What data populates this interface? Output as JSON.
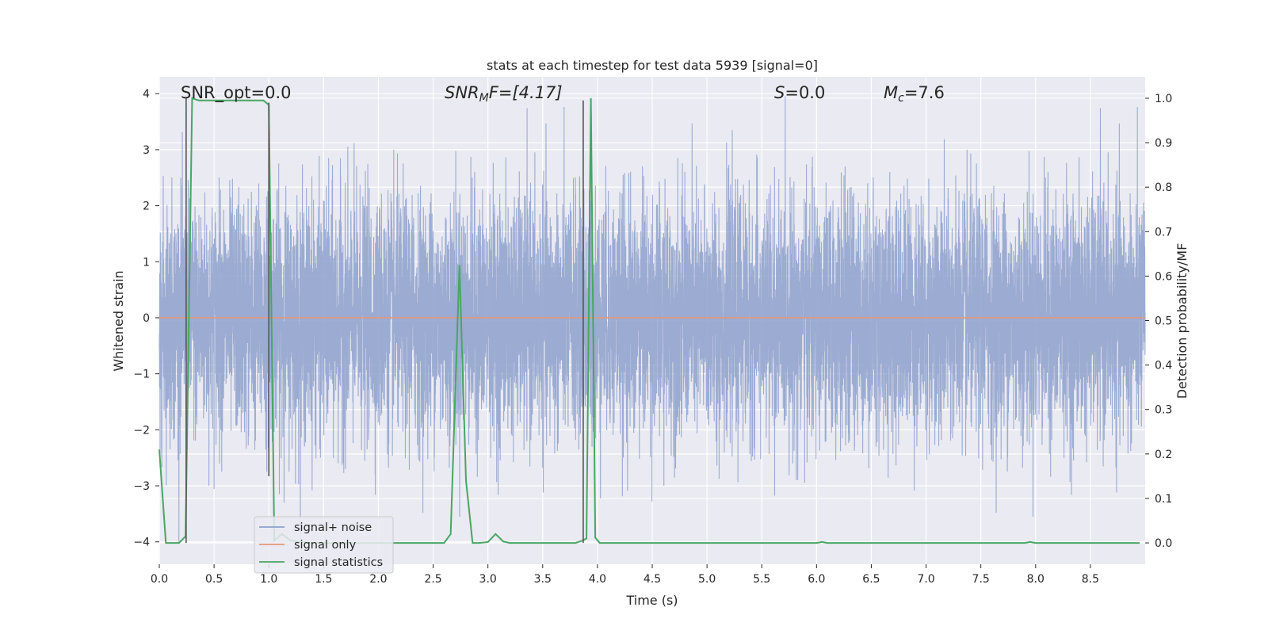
{
  "chart_data": {
    "type": "line",
    "title": "stats at each timestep for test data 5939 [signal=0]",
    "xlabel": "Time (s)",
    "ylabel_left": "Whitened strain",
    "ylabel_right": "Detection probability/MF",
    "xlim": [
      0.0,
      9.0
    ],
    "ylim_left": [
      -4.4,
      4.3
    ],
    "ylim_right": [
      -0.048,
      1.048
    ],
    "x_ticks": [
      "0.0",
      "0.5",
      "1.0",
      "1.5",
      "2.0",
      "2.5",
      "3.0",
      "3.5",
      "4.0",
      "4.5",
      "5.0",
      "5.5",
      "6.0",
      "6.5",
      "7.0",
      "7.5",
      "8.0",
      "8.5"
    ],
    "y_ticks_left": [
      "−4",
      "−3",
      "−2",
      "−1",
      "0",
      "1",
      "2",
      "3",
      "4"
    ],
    "y_ticks_right": [
      "0.0",
      "0.1",
      "0.2",
      "0.3",
      "0.4",
      "0.5",
      "0.6",
      "0.7",
      "0.8",
      "0.9",
      "1.0"
    ],
    "annotations": {
      "snr_opt": "SNR_opt=0.0",
      "snr_mf_main": "SNR",
      "snr_mf_sub": "M",
      "snr_mf_rest": "F=[4.17]",
      "s_main": "S",
      "s_rest": "=0.0",
      "mc_main": "M",
      "mc_sub": "c",
      "mc_rest": "=7.6"
    },
    "legend": {
      "position": "lower-left",
      "entries": [
        {
          "label": "signal+ noise",
          "color": "#8da0cb"
        },
        {
          "label": "signal only",
          "color": "#e5977a"
        },
        {
          "label": "signal statistics",
          "color": "#4aa564"
        }
      ]
    },
    "series": [
      {
        "name": "signal+ noise",
        "description": "whitened noisy strain, values roughly within [-4, 4] around 0",
        "noise_sigma": 1.0,
        "n_samples": 9000,
        "color": "#8da0cb"
      },
      {
        "name": "signal only",
        "y_constant": 0.0,
        "color": "#e5977a"
      },
      {
        "name": "signal statistics",
        "axis": "right",
        "color": "#4aa564",
        "x": [
          0.0,
          0.06,
          0.18,
          0.24,
          0.3,
          0.36,
          0.4,
          0.5,
          0.6,
          0.7,
          0.8,
          0.9,
          0.95,
          1.0,
          1.05,
          1.12,
          1.2,
          1.4,
          1.6,
          1.8,
          2.0,
          2.2,
          2.4,
          2.6,
          2.66,
          2.74,
          2.8,
          2.86,
          2.92,
          3.0,
          3.07,
          3.14,
          3.2,
          3.4,
          3.6,
          3.8,
          3.86,
          3.9,
          3.94,
          3.98,
          4.02,
          4.06,
          4.3,
          4.6,
          5.0,
          5.5,
          6.0,
          6.05,
          6.1,
          6.5,
          7.0,
          7.5,
          7.9,
          7.95,
          8.0,
          8.5,
          8.95
        ],
        "y": [
          0.21,
          0.0,
          0.0,
          0.015,
          1.0,
          0.995,
          0.995,
          0.995,
          0.995,
          0.995,
          0.995,
          0.995,
          0.995,
          0.985,
          0.005,
          0.02,
          0.005,
          0.0,
          0.0,
          0.0,
          0.0,
          0.0,
          0.0,
          0.0,
          0.02,
          0.625,
          0.14,
          0.0,
          0.0,
          0.002,
          0.02,
          0.003,
          0.0,
          0.0,
          0.0,
          0.0,
          0.005,
          0.01,
          1.0,
          0.012,
          0.0,
          0.0,
          0.0,
          0.0,
          0.0,
          0.0,
          0.0,
          0.002,
          0.0,
          0.0,
          0.0,
          0.0,
          0.0,
          0.002,
          0.0,
          0.0,
          0.0
        ]
      },
      {
        "name": "matched filter",
        "axis": "right",
        "color": "#555555",
        "description": "dark vertical lines (matched filter output spikes)",
        "segments": [
          {
            "x": 0.245,
            "y0": 0.0,
            "y1": 1.0
          },
          {
            "x": 1.0,
            "y0": 0.15,
            "y1": 0.99
          },
          {
            "x": 3.87,
            "y0": 0.0,
            "y1": 0.995
          }
        ]
      }
    ]
  }
}
